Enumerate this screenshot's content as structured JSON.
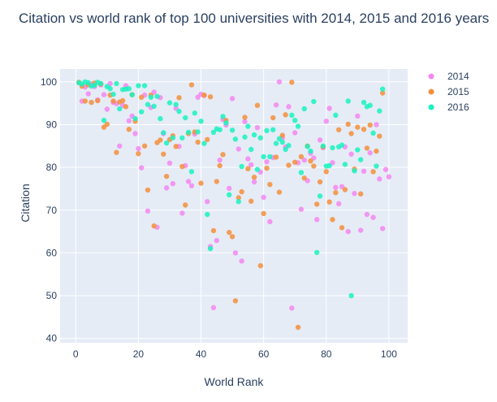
{
  "chart_data": {
    "type": "scatter",
    "title": "Citation vs world rank of top 100 universities with 2014, 2015 and 2016 years",
    "xlabel": "World Rank",
    "ylabel": "Citation",
    "xlim": [
      -5,
      106
    ],
    "ylim": [
      39,
      103
    ],
    "xticks": [
      0,
      20,
      40,
      60,
      80,
      100
    ],
    "yticks": [
      40,
      50,
      60,
      70,
      80,
      90,
      100
    ],
    "xtick_labels": [
      "0",
      "20",
      "40",
      "60",
      "80",
      "100"
    ],
    "ytick_labels": [
      "40",
      "50",
      "60",
      "70",
      "80",
      "90",
      "100"
    ],
    "grid": true,
    "legend_position": "right",
    "plot_bg": "#e5ecf6",
    "series": [
      {
        "name": "2014",
        "color": "#f587f1",
        "x": [
          1,
          2,
          3,
          4,
          5,
          6,
          7,
          8,
          9,
          10,
          11,
          12,
          13,
          14,
          15,
          16,
          17,
          18,
          19,
          20,
          21,
          22,
          23,
          24,
          25,
          26,
          27,
          28,
          29,
          30,
          31,
          32,
          33,
          34,
          35,
          36,
          37,
          38,
          39,
          40,
          41,
          42,
          43,
          44,
          45,
          46,
          47,
          48,
          49,
          50,
          51,
          52,
          53,
          54,
          55,
          56,
          57,
          58,
          59,
          60,
          61,
          62,
          63,
          64,
          65,
          66,
          67,
          68,
          69,
          70,
          71,
          72,
          73,
          74,
          75,
          76,
          77,
          78,
          79,
          80,
          81,
          82,
          83,
          84,
          85,
          86,
          87,
          88,
          89,
          90,
          91,
          92,
          93,
          94,
          95,
          96,
          97,
          98,
          99,
          100
        ],
        "y": [
          99.8,
          95.5,
          98.8,
          97.2,
          99.5,
          98.9,
          95.8,
          99.3,
          97.0,
          93.6,
          99.6,
          95.2,
          94.9,
          85.0,
          94.5,
          99.1,
          90.9,
          92.0,
          87.9,
          84.4,
          79.9,
          96.9,
          69.8,
          94.0,
          97.6,
          66.0,
          96.3,
          87.9,
          75.2,
          81.0,
          76.2,
          93.8,
          84.9,
          69.3,
          80.4,
          76.7,
          75.7,
          87.8,
          96.4,
          97.1,
          96.8,
          72.0,
          61.5,
          47.2,
          62.9,
          81.7,
          91.2,
          89.9,
          75.1,
          96.1,
          60.0,
          84.3,
          58.1,
          90.7,
          82.0,
          80.6,
          76.6,
          89.3,
          78.9,
          73.0,
          81.3,
          67.3,
          82.3,
          94.6,
          100.0,
          86.9,
          84.8,
          94.2,
          47.1,
          88.1,
          81.1,
          70.2,
          81.7,
          76.9,
          83.3,
          82.2,
          67.8,
          86.4,
          84.6,
          90.8,
          93.8,
          81.1,
          75.3,
          71.5,
          75.5,
          84.8,
          65.0,
          83.1,
          73.9,
          92.0,
          65.3,
          79.1,
          69.0,
          83.4,
          68.3,
          90.0,
          77.3,
          65.7,
          79.5,
          77.8
        ]
      },
      {
        "name": "2015",
        "color": "#f58f3b",
        "x": [
          1,
          2,
          3,
          4,
          5,
          6,
          7,
          8,
          9,
          10,
          11,
          12,
          13,
          14,
          15,
          16,
          17,
          18,
          19,
          20,
          21,
          22,
          23,
          24,
          25,
          26,
          27,
          28,
          29,
          30,
          31,
          32,
          33,
          34,
          35,
          36,
          37,
          38,
          39,
          40,
          41,
          42,
          43,
          44,
          45,
          46,
          47,
          48,
          49,
          50,
          51,
          52,
          53,
          54,
          55,
          56,
          57,
          58,
          59,
          60,
          61,
          62,
          63,
          64,
          65,
          66,
          67,
          68,
          69,
          70,
          71,
          72,
          73,
          74,
          75,
          76,
          77,
          78,
          79,
          80,
          81,
          82,
          83,
          84,
          85,
          86,
          87,
          88,
          89,
          90,
          91,
          92,
          93,
          94,
          95,
          96,
          97,
          98
        ],
        "y": [
          99.9,
          99.0,
          95.5,
          99.3,
          95.2,
          99.7,
          95.6,
          99.5,
          89.4,
          90.1,
          96.9,
          95.5,
          83.5,
          95.3,
          95.6,
          94.2,
          88.9,
          97.0,
          90.8,
          83.2,
          96.4,
          85.0,
          74.7,
          96.9,
          66.3,
          85.8,
          86.4,
          83.1,
          77.9,
          86.5,
          87.4,
          84.9,
          96.3,
          80.2,
          71.2,
          87.9,
          99.3,
          88.3,
          85.9,
          76.3,
          96.9,
          86.5,
          96.5,
          65.2,
          76.7,
          80.4,
          83.0,
          91.0,
          64.8,
          63.8,
          48.8,
          72.9,
          74.3,
          91.7,
          79.7,
          72.1,
          77.7,
          94.5,
          57.0,
          69.2,
          79.8,
          76.0,
          91.6,
          82.4,
          74.2,
          87.5,
          92.3,
          80.5,
          99.9,
          81.2,
          42.6,
          82.5,
          77.5,
          85.0,
          81.5,
          80.3,
          71.4,
          76.6,
          84.8,
          79.0,
          71.9,
          67.8,
          74.1,
          88.8,
          65.9,
          74.8,
          90.1,
          87.9,
          79.6,
          89.4,
          73.8,
          88.9,
          84.5,
          89.9,
          79.0,
          83.8,
          87.3,
          97.4
        ]
      },
      {
        "name": "2016",
        "color": "#19f3c0",
        "x": [
          1,
          2,
          3,
          4,
          5,
          6,
          7,
          8,
          9,
          10,
          11,
          12,
          13,
          14,
          15,
          16,
          17,
          18,
          19,
          20,
          21,
          22,
          23,
          24,
          25,
          26,
          27,
          28,
          29,
          30,
          31,
          32,
          33,
          34,
          35,
          36,
          37,
          38,
          39,
          40,
          41,
          42,
          43,
          44,
          45,
          46,
          47,
          48,
          49,
          50,
          51,
          52,
          53,
          54,
          55,
          56,
          57,
          58,
          59,
          60,
          61,
          62,
          63,
          64,
          65,
          66,
          67,
          68,
          69,
          70,
          71,
          72,
          73,
          74,
          75,
          76,
          77,
          78,
          79,
          80,
          81,
          82,
          83,
          84,
          85,
          86,
          87,
          88,
          89,
          90,
          91,
          92,
          93,
          94,
          95,
          96,
          97,
          98
        ],
        "y": [
          99.8,
          99.5,
          100.0,
          99.8,
          99.0,
          99.2,
          99.9,
          99.6,
          91.0,
          98.9,
          98.4,
          97.1,
          99.6,
          93.7,
          98.2,
          98.3,
          98.4,
          97.0,
          91.4,
          99.1,
          93.0,
          99.1,
          94.7,
          96.4,
          94.3,
          96.6,
          91.4,
          88.1,
          85.7,
          95.1,
          86.9,
          94.7,
          93.1,
          86.9,
          91.6,
          88.2,
          79.0,
          92.7,
          88.3,
          90.8,
          85.6,
          69.0,
          61.0,
          88.2,
          89.0,
          88.8,
          91.9,
          90.4,
          73.6,
          88.7,
          86.6,
          72.0,
          80.2,
          87.1,
          89.6,
          84.2,
          87.6,
          79.5,
          86.9,
          82.5,
          88.6,
          82.5,
          88.8,
          85.6,
          86.7,
          85.9,
          84.2,
          85.1,
          92.2,
          91.0,
          89.6,
          78.8,
          93.7,
          84.9,
          83.8,
          95.4,
          60.1,
          73.3,
          85.0,
          80.3,
          80.4,
          84.6,
          92.2,
          84.8,
          85.2,
          80.7,
          95.5,
          50.0,
          79.2,
          84.1,
          81.8,
          95.2,
          94.2,
          94.5,
          88.0,
          80.3,
          93.2,
          98.3
        ]
      }
    ]
  }
}
